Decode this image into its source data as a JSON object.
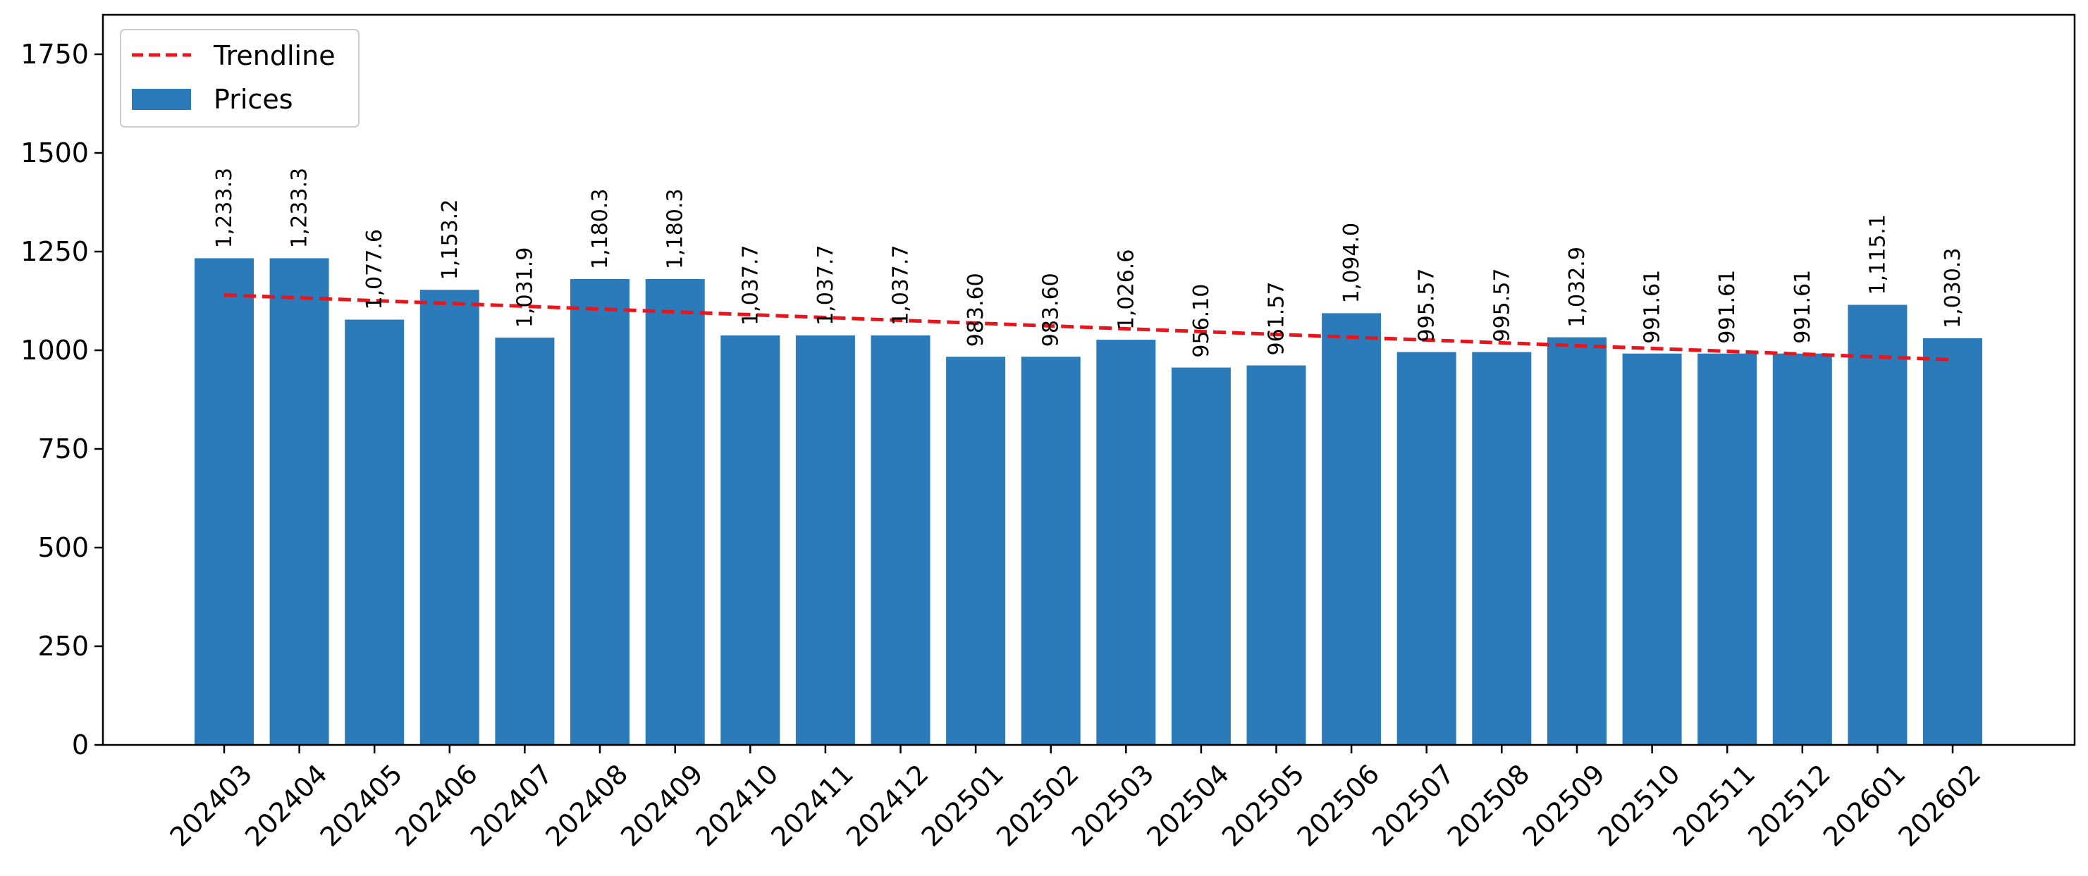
{
  "chart_data": {
    "type": "bar",
    "title": "",
    "xlabel": "",
    "ylabel": "",
    "ylim": [
      0,
      1850
    ],
    "yticks": [
      0,
      250,
      500,
      750,
      1000,
      1250,
      1500,
      1750
    ],
    "grid": false,
    "legend_position": "top-left",
    "categories": [
      "202403",
      "202404",
      "202405",
      "202406",
      "202407",
      "202408",
      "202409",
      "202410",
      "202411",
      "202412",
      "202501",
      "202502",
      "202503",
      "202504",
      "202505",
      "202506",
      "202507",
      "202508",
      "202509",
      "202510",
      "202511",
      "202512",
      "202601",
      "202602"
    ],
    "series": [
      {
        "name": "Prices",
        "type": "bar",
        "color": "#2b7bba",
        "values": [
          1233.3,
          1233.3,
          1077.6,
          1153.2,
          1031.9,
          1180.3,
          1180.3,
          1037.7,
          1037.7,
          1037.7,
          983.6,
          983.6,
          1026.6,
          956.1,
          961.57,
          1094.0,
          995.57,
          995.57,
          1032.9,
          991.61,
          991.61,
          991.61,
          1115.1,
          1030.3
        ],
        "labels": [
          "1,233.3",
          "1,233.3",
          "1,077.6",
          "1,153.2",
          "1,031.9",
          "1,180.3",
          "1,180.3",
          "1,037.7",
          "1,037.7",
          "1,037.7",
          "983.60",
          "983.60",
          "1,026.6",
          "956.10",
          "961.57",
          "1,094.0",
          "995.57",
          "995.57",
          "1,032.9",
          "991.61",
          "991.61",
          "991.61",
          "1,115.1",
          "1,030.3"
        ]
      },
      {
        "name": "Trendline",
        "type": "line",
        "style": "dashed",
        "color": "#e8161c",
        "start_value": 1140,
        "end_value": 976
      }
    ]
  }
}
